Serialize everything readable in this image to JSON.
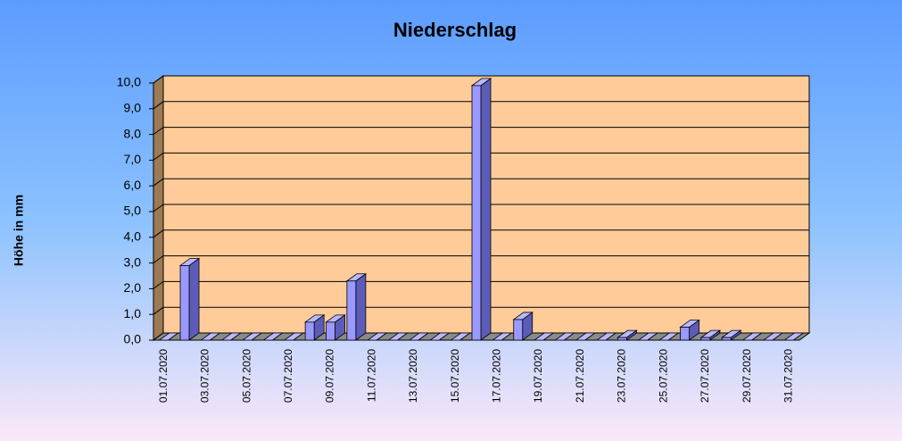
{
  "chart_data": {
    "type": "bar3d",
    "title": "Niederschlag",
    "y_label": "Höhe in mm",
    "categories": [
      "01.07.2020",
      null,
      "03.07.2020",
      null,
      "05.07.2020",
      null,
      "07.07.2020",
      null,
      "09.07.2020",
      null,
      "11.07.2020",
      null,
      "13.07.2020",
      null,
      "15.07.2020",
      null,
      "17.07.2020",
      null,
      "19.07.2020",
      null,
      "21.07.2020",
      null,
      "23.07.2020",
      null,
      "25.07.2020",
      null,
      "27.07.2020",
      null,
      "29.07.2020",
      null,
      "31.07.2020"
    ],
    "values": [
      0,
      2.9,
      0,
      0,
      0,
      0,
      0,
      0.7,
      0.7,
      2.3,
      0,
      0,
      0,
      0,
      0,
      9.9,
      0,
      0.8,
      0,
      0,
      0,
      0,
      0.1,
      0,
      0,
      0.5,
      0.1,
      0.1,
      0,
      0,
      0
    ],
    "color": "#9999ff",
    "ylim": [
      0,
      10
    ],
    "yticks": [
      {
        "value": 0,
        "label": "0,0"
      },
      {
        "value": 1,
        "label": "1,0"
      },
      {
        "value": 2,
        "label": "2,0"
      },
      {
        "value": 3,
        "label": "3,0"
      },
      {
        "value": 4,
        "label": "4,0"
      },
      {
        "value": 5,
        "label": "5,0"
      },
      {
        "value": 6,
        "label": "6,0"
      },
      {
        "value": 7,
        "label": "7,0"
      },
      {
        "value": 8,
        "label": "8,0"
      },
      {
        "value": 9,
        "label": "9,0"
      },
      {
        "value": 10,
        "label": "10,0"
      }
    ],
    "grid": true
  }
}
